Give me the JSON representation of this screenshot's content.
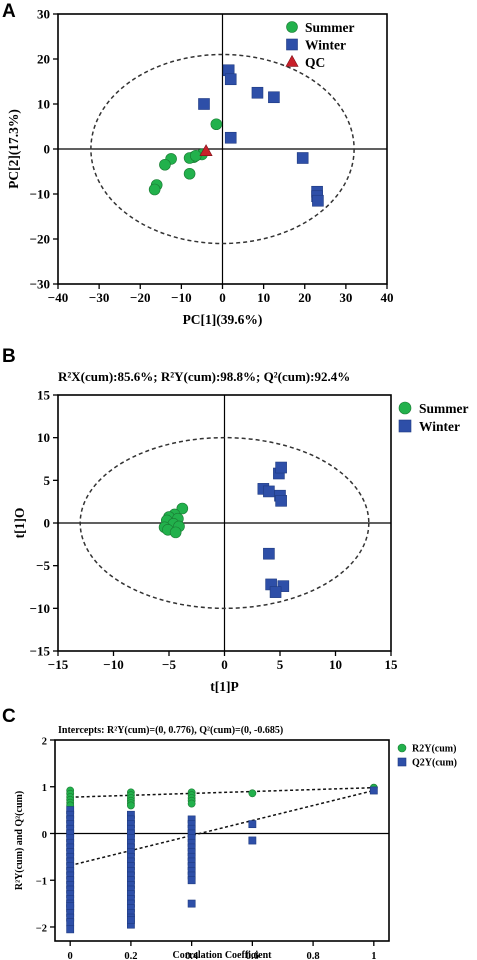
{
  "panels": {
    "a": "A",
    "b": "B",
    "c": "C"
  },
  "colors": {
    "summer": "#22b14c",
    "winter": "#2e4fa8",
    "qc": "#c8202a",
    "axis": "#000000"
  },
  "chart_data": [
    {
      "type": "scatter",
      "xlabel": "PC[1](39.6%)",
      "ylabel": "PC[2](17.3%)",
      "xlim": [
        -40,
        40
      ],
      "ylim": [
        -30,
        30
      ],
      "xticks": [
        -40,
        -30,
        -20,
        -10,
        0,
        10,
        20,
        30,
        40
      ],
      "yticks": [
        -30,
        -20,
        -10,
        0,
        10,
        20,
        30
      ],
      "ellipse": {
        "rx": 32,
        "ry": 21
      },
      "legend": "top-right",
      "series": [
        {
          "name": "Summer",
          "marker": "circle",
          "x": [
            -1.5,
            -7,
            -8,
            -8,
            -12.5,
            -14,
            -16,
            -16.5,
            -5,
            -6.5
          ],
          "y": [
            5.5,
            -1.8,
            -5.5,
            -2,
            -2.2,
            -3.5,
            -8,
            -9,
            -1.2,
            -1.5
          ]
        },
        {
          "name": "Winter",
          "marker": "square",
          "x": [
            -4.5,
            1.5,
            2,
            2,
            8.5,
            12.5,
            19.5,
            23,
            23,
            23.2
          ],
          "y": [
            10,
            17.5,
            15.5,
            2.5,
            12.5,
            11.5,
            -2,
            -9.5,
            -10.5,
            -11.5
          ]
        },
        {
          "name": "QC",
          "marker": "triangle",
          "x": [
            -4
          ],
          "y": [
            -0.5
          ]
        }
      ]
    },
    {
      "type": "scatter",
      "title": "R²X(cum):85.6%; R²Y(cum):98.8%; Q²(cum):92.4%",
      "xlabel": "t[1]P",
      "ylabel": "t[1]O",
      "xlim": [
        -15,
        15
      ],
      "ylim": [
        -15,
        15
      ],
      "xticks": [
        -15,
        -10,
        -5,
        0,
        5,
        10,
        15
      ],
      "yticks": [
        -15,
        -10,
        -5,
        0,
        5,
        10,
        15
      ],
      "ellipse": {
        "rx": 13,
        "ry": 10
      },
      "legend": "top-right",
      "series": [
        {
          "name": "Summer",
          "marker": "circle",
          "x": [
            -3.8,
            -4.5,
            -5,
            -4.2,
            -5.2,
            -4.6,
            -5.4,
            -4.1,
            -5.1,
            -4.4
          ],
          "y": [
            1.7,
            1.0,
            0.7,
            0.5,
            0.3,
            -0.1,
            -0.5,
            -0.4,
            -0.8,
            -1.1
          ]
        },
        {
          "name": "Winter",
          "marker": "square",
          "x": [
            3.5,
            4,
            4.9,
            5.1,
            5,
            5.1,
            4,
            4.2,
            5.3,
            4.6
          ],
          "y": [
            4,
            3.7,
            5.8,
            6.5,
            3.2,
            2.6,
            -3.6,
            -7.2,
            -7.4,
            -8.1
          ]
        }
      ]
    },
    {
      "type": "scatter",
      "title": "Intercepts: R²Y(cum)=(0, 0.776), Q²(cum)=(0, -0.685)",
      "xlabel": "Correlation Coefficient",
      "ylabel": "R²Y(cum) and Q²(cum)",
      "xlim": [
        -0.05,
        1.05
      ],
      "ylim": [
        -2.3,
        2
      ],
      "xticks": [
        0,
        0.2,
        0.4,
        0.6,
        0.8,
        1
      ],
      "yticks": [
        -2,
        -1,
        0,
        1,
        2
      ],
      "legend": "top-right",
      "intercepts": {
        "r2y": 0.776,
        "q2": -0.685
      },
      "endpoints": {
        "r2y": 0.98,
        "q2": 0.92
      },
      "series": [
        {
          "name": "R2Y(cum)",
          "marker": "circle",
          "x": [
            0,
            0,
            0,
            0,
            0,
            0,
            0.2,
            0.2,
            0.2,
            0.2,
            0.2,
            0.2,
            0.4,
            0.4,
            0.4,
            0.4,
            0.4,
            0.6,
            1
          ],
          "y": [
            0.92,
            0.85,
            0.78,
            0.72,
            0.66,
            0.6,
            0.88,
            0.82,
            0.76,
            0.7,
            0.65,
            0.6,
            0.88,
            0.82,
            0.76,
            0.7,
            0.64,
            0.86,
            0.98
          ]
        },
        {
          "name": "Q2Y(cum)",
          "marker": "square",
          "x": [
            0,
            0,
            0,
            0,
            0,
            0,
            0,
            0,
            0,
            0,
            0,
            0,
            0,
            0,
            0,
            0,
            0,
            0,
            0,
            0,
            0,
            0,
            0,
            0,
            0,
            0,
            0,
            0.2,
            0.2,
            0.2,
            0.2,
            0.2,
            0.2,
            0.2,
            0.2,
            0.2,
            0.2,
            0.2,
            0.2,
            0.2,
            0.2,
            0.2,
            0.2,
            0.2,
            0.2,
            0.2,
            0.2,
            0.2,
            0.2,
            0.2,
            0.2,
            0.2,
            0.4,
            0.4,
            0.4,
            0.4,
            0.4,
            0.4,
            0.4,
            0.4,
            0.4,
            0.4,
            0.4,
            0.4,
            0.4,
            0.4,
            0.4,
            0.6,
            0.6,
            1
          ],
          "y": [
            0.5,
            0.4,
            0.3,
            0.2,
            0.1,
            0,
            -0.1,
            -0.2,
            -0.3,
            -0.4,
            -0.5,
            -0.6,
            -0.7,
            -0.8,
            -0.9,
            -1.0,
            -1.1,
            -1.2,
            -1.3,
            -1.4,
            -1.5,
            -1.6,
            -1.7,
            -1.8,
            -1.9,
            -2.05,
            -1.55,
            0.4,
            0.3,
            0.2,
            0.1,
            0,
            -0.1,
            -0.2,
            -0.3,
            -0.4,
            -0.5,
            -0.6,
            -0.7,
            -0.8,
            -0.9,
            -1.0,
            -1.1,
            -1.2,
            -1.3,
            -1.4,
            -1.5,
            -1.6,
            -1.7,
            -1.8,
            -1.95,
            -1.85,
            0.3,
            0.2,
            0.1,
            0,
            -0.1,
            -0.2,
            -0.3,
            -0.4,
            -0.5,
            -0.6,
            -0.7,
            -0.8,
            -0.9,
            -1.0,
            -1.5,
            0.2,
            -0.15,
            0.92
          ]
        }
      ]
    }
  ]
}
